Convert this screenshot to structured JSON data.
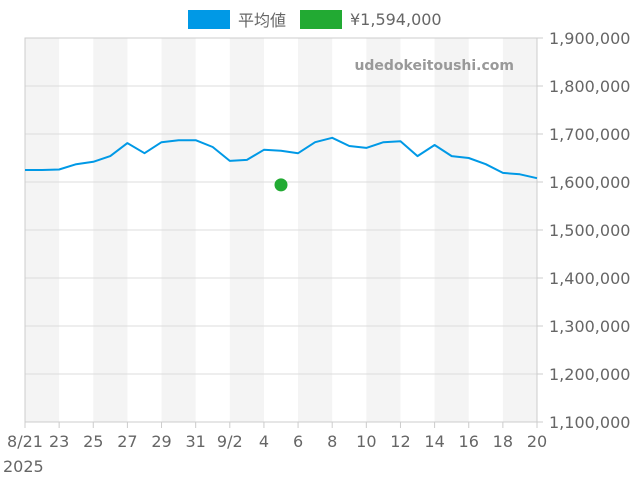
{
  "legend": {
    "items": [
      {
        "label": "平均値",
        "color": "#0099e6"
      },
      {
        "label": "¥1,594,000",
        "color": "#22aa33"
      }
    ]
  },
  "watermark": "udedokeitoushi.com",
  "y_axis": {
    "labels": [
      "1,900,000",
      "1,800,000",
      "1,700,000",
      "1,600,000",
      "1,500,000",
      "1,400,000",
      "1,300,000",
      "1,200,000",
      "1,100,000"
    ]
  },
  "x_axis": {
    "labels": [
      "8/21",
      "23",
      "25",
      "27",
      "29",
      "31",
      "9/2",
      "4",
      "6",
      "8",
      "10",
      "12",
      "14",
      "16",
      "18",
      "20"
    ],
    "year_label": "2025"
  },
  "chart_data": {
    "type": "line",
    "title": "",
    "xlabel": "",
    "ylabel": "",
    "ylim": [
      1100000,
      1900000
    ],
    "grid": true,
    "legend_position": "top",
    "x": [
      "2025-08-21",
      "2025-08-22",
      "2025-08-23",
      "2025-08-24",
      "2025-08-25",
      "2025-08-26",
      "2025-08-27",
      "2025-08-28",
      "2025-08-29",
      "2025-08-30",
      "2025-08-31",
      "2025-09-01",
      "2025-09-02",
      "2025-09-03",
      "2025-09-04",
      "2025-09-05",
      "2025-09-06",
      "2025-09-07",
      "2025-09-08",
      "2025-09-09",
      "2025-09-10",
      "2025-09-11",
      "2025-09-12",
      "2025-09-13",
      "2025-09-14",
      "2025-09-15",
      "2025-09-16",
      "2025-09-17",
      "2025-09-18",
      "2025-09-19",
      "2025-09-20"
    ],
    "series": [
      {
        "name": "平均値",
        "color": "#0099e6",
        "values": [
          1625000,
          1625000,
          1626000,
          1637000,
          1642000,
          1654000,
          1681000,
          1660000,
          1683000,
          1687000,
          1687000,
          1673000,
          1644000,
          1646000,
          1667000,
          1665000,
          1660000,
          1683000,
          1692000,
          1675000,
          1671000,
          1683000,
          1685000,
          1654000,
          1677000,
          1654000,
          1650000,
          1637000,
          1619000,
          1616000,
          1608000
        ]
      },
      {
        "name": "¥1,594,000",
        "color": "#22aa33",
        "type": "scatter",
        "points": [
          {
            "x": "2025-09-05",
            "y": 1594000
          }
        ]
      }
    ],
    "xtick_labels": [
      "8/21\n2025",
      "23",
      "25",
      "27",
      "29",
      "31",
      "9/2",
      "4",
      "6",
      "8",
      "10",
      "12",
      "14",
      "16",
      "18",
      "20"
    ],
    "ytick_labels": [
      "1,100,000",
      "1,200,000",
      "1,300,000",
      "1,400,000",
      "1,500,000",
      "1,600,000",
      "1,700,000",
      "1,800,000",
      "1,900,000"
    ]
  }
}
